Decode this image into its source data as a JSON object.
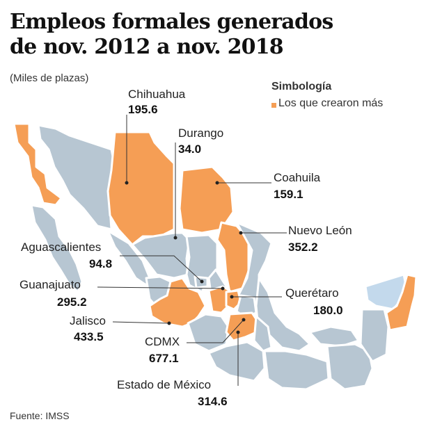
{
  "title_line1": "Empleos formales generados",
  "title_line2": "de nov. 2012 a nov. 2018",
  "subtitle": "(Miles de plazas)",
  "legend": {
    "title": "Simbología",
    "item": "Los que crearon más",
    "color": "#f59e55"
  },
  "colors": {
    "highlight": "#f59e55",
    "other": "#b7c6d2",
    "yucatan": "#c3d9ec"
  },
  "highlighted_states": [
    "Baja California",
    "Chihuahua",
    "Coahuila",
    "Nuevo León",
    "Jalisco",
    "Guanajuato",
    "Querétaro",
    "CDMX",
    "Estado de México",
    "Quintana Roo"
  ],
  "labels": [
    {
      "name": "Chihuahua",
      "value": "195.6"
    },
    {
      "name": "Durango",
      "value": "34.0"
    },
    {
      "name": "Coahuila",
      "value": "159.1"
    },
    {
      "name": "Nuevo León",
      "value": "352.2"
    },
    {
      "name": "Aguascalientes",
      "value": "94.8"
    },
    {
      "name": "Guanajuato",
      "value": "295.2"
    },
    {
      "name": "Querétaro",
      "value": "180.0"
    },
    {
      "name": "Jalisco",
      "value": "433.5"
    },
    {
      "name": "CDMX",
      "value": "677.1"
    },
    {
      "name": "Estado de México",
      "value": "314.6"
    }
  ],
  "source": "Fuente: IMSS"
}
